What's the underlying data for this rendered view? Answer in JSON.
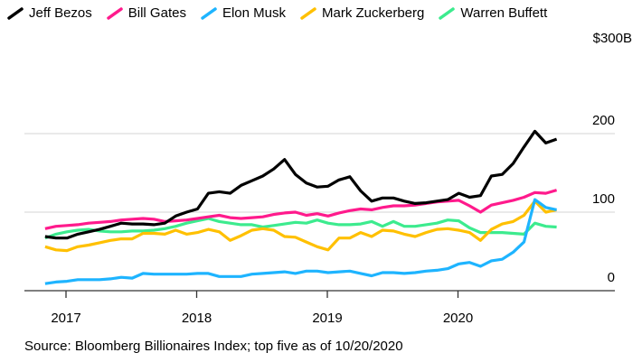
{
  "chart_data": {
    "type": "line",
    "unit_label": "$300B",
    "source": "Source: Bloomberg Billionaires Index; top five as of 10/20/2020",
    "x_start": 2016.84,
    "x_step_years": 0.0833,
    "xlim": [
      2016.8,
      2020.85
    ],
    "ylim": [
      0,
      300
    ],
    "y_ticks": [
      {
        "value": 200,
        "label": "200"
      },
      {
        "value": 100,
        "label": "100"
      },
      {
        "value": 0,
        "label": "0"
      }
    ],
    "x_ticks": [
      {
        "value": 2017,
        "label": "2017"
      },
      {
        "value": 2018,
        "label": "2018"
      },
      {
        "value": 2019,
        "label": "2019"
      },
      {
        "value": 2020,
        "label": "2020"
      }
    ],
    "grid": true,
    "legend_position": "top",
    "series": [
      {
        "name": "Jeff Bezos",
        "color": "#000000",
        "values": [
          69,
          67,
          67,
          72,
          75,
          78,
          82,
          86,
          85,
          85,
          84,
          86,
          95,
          100,
          104,
          124,
          126,
          124,
          134,
          140,
          146,
          155,
          167,
          148,
          137,
          132,
          133,
          141,
          145,
          127,
          114,
          118,
          118,
          114,
          111,
          112,
          114,
          116,
          124,
          119,
          121,
          146,
          148,
          162,
          183,
          203,
          188,
          193
        ]
      },
      {
        "name": "Bill Gates",
        "color": "#ff1a8c",
        "values": [
          79,
          82,
          83,
          84,
          86,
          87,
          88,
          90,
          91,
          92,
          91,
          88,
          89,
          90,
          92,
          94,
          96,
          93,
          92,
          93,
          94,
          97,
          99,
          100,
          96,
          98,
          95,
          99,
          102,
          104,
          103,
          106,
          108,
          108,
          109,
          111,
          113,
          114,
          115,
          108,
          100,
          109,
          112,
          115,
          119,
          125,
          124,
          128
        ]
      },
      {
        "name": "Elon Musk",
        "color": "#1eb4ff",
        "values": [
          9,
          11,
          12,
          14,
          14,
          14,
          15,
          17,
          16,
          22,
          21,
          21,
          21,
          21,
          22,
          22,
          18,
          18,
          18,
          21,
          22,
          23,
          24,
          22,
          25,
          25,
          23,
          24,
          25,
          22,
          19,
          23,
          23,
          22,
          23,
          25,
          26,
          28,
          34,
          36,
          31,
          38,
          40,
          49,
          62,
          116,
          106,
          103
        ]
      },
      {
        "name": "Mark Zuckerberg",
        "color": "#ffc000",
        "values": [
          56,
          52,
          51,
          56,
          58,
          61,
          64,
          66,
          66,
          73,
          73,
          72,
          77,
          72,
          74,
          78,
          75,
          64,
          70,
          77,
          79,
          77,
          69,
          68,
          62,
          56,
          52,
          67,
          67,
          74,
          69,
          77,
          76,
          72,
          69,
          74,
          78,
          79,
          77,
          74,
          64,
          78,
          85,
          88,
          96,
          114,
          100,
          103
        ]
      },
      {
        "name": "Warren Buffett",
        "color": "#3ceb8e",
        "values": [
          67,
          72,
          75,
          77,
          78,
          76,
          75,
          75,
          76,
          76,
          77,
          79,
          82,
          86,
          89,
          92,
          88,
          86,
          84,
          84,
          81,
          83,
          85,
          87,
          86,
          90,
          86,
          84,
          84,
          85,
          88,
          82,
          88,
          82,
          82,
          84,
          86,
          90,
          89,
          80,
          74,
          74,
          74,
          73,
          72,
          86,
          82,
          81
        ]
      }
    ]
  }
}
